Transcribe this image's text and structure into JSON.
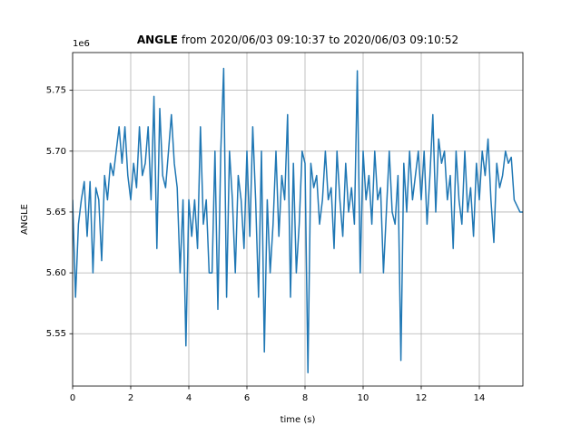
{
  "chart_data": {
    "type": "line",
    "title": {
      "bold": "ANGLE",
      "text": "from 2020/06/03 09:10:37 to 2020/06/03 09:10:52"
    },
    "offset_text": "1e6",
    "xlabel": "time (s)",
    "ylabel": "ANGLE",
    "xlim": [
      0,
      15.5
    ],
    "ylim": [
      5.507,
      5.781
    ],
    "xticks": [
      0,
      2,
      4,
      6,
      8,
      10,
      12,
      14
    ],
    "yticks": [
      5.55,
      {
        "value": 5.6,
        "label": "5.60"
      },
      5.65,
      {
        "value": 5.7,
        "label": "5.70"
      },
      5.75
    ],
    "grid": true,
    "x": [
      0,
      0.1,
      0.2,
      0.3,
      0.4,
      0.5,
      0.6,
      0.7,
      0.8,
      0.9,
      1,
      1.1,
      1.2,
      1.3,
      1.4,
      1.5,
      1.6,
      1.7,
      1.8,
      1.9,
      2,
      2.1,
      2.2,
      2.3,
      2.4,
      2.5,
      2.6,
      2.7,
      2.8,
      2.9,
      3,
      3.1,
      3.2,
      3.3,
      3.4,
      3.5,
      3.6,
      3.7,
      3.8,
      3.9,
      4,
      4.1,
      4.2,
      4.3,
      4.4,
      4.5,
      4.6,
      4.7,
      4.8,
      4.9,
      5,
      5.1,
      5.2,
      5.3,
      5.4,
      5.5,
      5.6,
      5.7,
      5.8,
      5.9,
      6,
      6.1,
      6.2,
      6.3,
      6.4,
      6.5,
      6.6,
      6.7,
      6.8,
      6.9,
      7,
      7.1,
      7.2,
      7.3,
      7.4,
      7.5,
      7.6,
      7.7,
      7.8,
      7.9,
      8,
      8.1,
      8.2,
      8.3,
      8.4,
      8.5,
      8.6,
      8.7,
      8.8,
      8.9,
      9,
      9.1,
      9.2,
      9.3,
      9.4,
      9.5,
      9.6,
      9.7,
      9.8,
      9.9,
      10,
      10.1,
      10.2,
      10.3,
      10.4,
      10.5,
      10.6,
      10.7,
      10.8,
      10.9,
      11,
      11.1,
      11.2,
      11.3,
      11.4,
      11.5,
      11.6,
      11.7,
      11.8,
      11.9,
      12,
      12.1,
      12.2,
      12.3,
      12.4,
      12.5,
      12.6,
      12.7,
      12.8,
      12.9,
      13,
      13.1,
      13.2,
      13.3,
      13.4,
      13.5,
      13.6,
      13.7,
      13.8,
      13.9,
      14,
      14.1,
      14.2,
      14.3,
      14.4,
      14.5,
      14.6,
      14.7,
      14.8,
      14.9,
      15,
      15.1,
      15.2,
      15.3,
      15.4,
      15.5
    ],
    "series": [
      {
        "color": "#1f77b4",
        "values": [
          5.66,
          5.58,
          5.64,
          5.66,
          5.675,
          5.63,
          5.675,
          5.6,
          5.67,
          5.66,
          5.61,
          5.68,
          5.66,
          5.69,
          5.68,
          5.7,
          5.72,
          5.69,
          5.72,
          5.68,
          5.66,
          5.69,
          5.67,
          5.72,
          5.68,
          5.69,
          5.72,
          5.66,
          5.745,
          5.62,
          5.735,
          5.68,
          5.67,
          5.7,
          5.73,
          5.69,
          5.67,
          5.6,
          5.66,
          5.54,
          5.66,
          5.63,
          5.66,
          5.62,
          5.72,
          5.64,
          5.66,
          5.6,
          5.6,
          5.7,
          5.57,
          5.7,
          5.768,
          5.58,
          5.7,
          5.66,
          5.6,
          5.68,
          5.66,
          5.62,
          5.7,
          5.63,
          5.72,
          5.66,
          5.58,
          5.7,
          5.535,
          5.66,
          5.6,
          5.64,
          5.7,
          5.63,
          5.68,
          5.66,
          5.73,
          5.58,
          5.69,
          5.6,
          5.64,
          5.7,
          5.69,
          5.518,
          5.69,
          5.67,
          5.68,
          5.64,
          5.66,
          5.7,
          5.66,
          5.67,
          5.62,
          5.7,
          5.66,
          5.63,
          5.69,
          5.65,
          5.67,
          5.64,
          5.766,
          5.6,
          5.7,
          5.66,
          5.68,
          5.64,
          5.7,
          5.66,
          5.67,
          5.6,
          5.65,
          5.7,
          5.65,
          5.64,
          5.68,
          5.528,
          5.69,
          5.65,
          5.7,
          5.66,
          5.68,
          5.7,
          5.66,
          5.7,
          5.64,
          5.68,
          5.73,
          5.65,
          5.71,
          5.69,
          5.7,
          5.66,
          5.68,
          5.62,
          5.7,
          5.66,
          5.64,
          5.7,
          5.65,
          5.67,
          5.63,
          5.69,
          5.66,
          5.7,
          5.68,
          5.71,
          5.66,
          5.625,
          5.69,
          5.67,
          5.68,
          5.7,
          5.69,
          5.695,
          5.66,
          5.655,
          5.65,
          5.65
        ]
      }
    ]
  }
}
